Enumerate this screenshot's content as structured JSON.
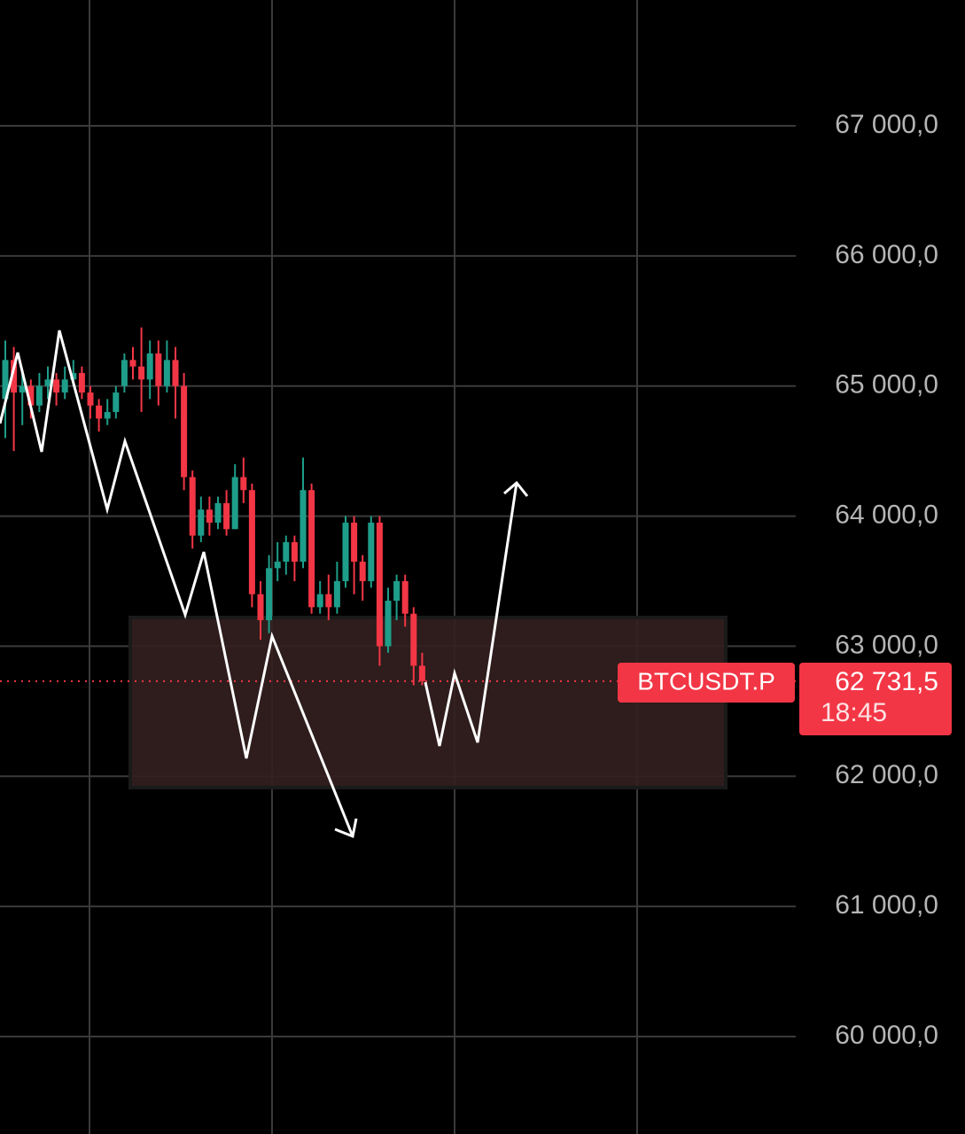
{
  "chart_data": {
    "type": "candlestick",
    "symbol": "BTCUSDT.P",
    "last_price": 62731.5,
    "last_price_label": "62 731,5",
    "countdown": "18:45",
    "ylim": [
      59251,
      67967
    ],
    "yticks": [
      {
        "value": 67000,
        "label": "67 000,0"
      },
      {
        "value": 66000,
        "label": "66 000,0"
      },
      {
        "value": 65000,
        "label": "65 000,0"
      },
      {
        "value": 64000,
        "label": "64 000,0"
      },
      {
        "value": 63000,
        "label": "63 000,0"
      },
      {
        "value": 62000,
        "label": "62 000,0"
      },
      {
        "value": 61000,
        "label": "61 000,0"
      },
      {
        "value": 60000,
        "label": "60 000,0"
      }
    ],
    "grid": true,
    "up_color": "#1e9e8a",
    "down_color": "#f23645",
    "open": [
      64900,
      65200,
      64950,
      65000,
      64850,
      65000,
      65050,
      64950,
      65050,
      65100,
      64950,
      64850,
      64750,
      64800,
      65000,
      65200,
      65150,
      65050,
      65250,
      65000,
      65200,
      65000,
      64300,
      63850,
      64050,
      63950,
      64100,
      63900,
      64300,
      64200,
      63400,
      63200,
      63600,
      63650,
      63800,
      63650,
      64200,
      63300,
      63400,
      63300,
      63500,
      63950,
      63650,
      63500,
      63950,
      63000,
      63350,
      63500,
      63250,
      62850
    ],
    "high": [
      65350,
      65300,
      65100,
      65050,
      65100,
      65150,
      65100,
      65150,
      65200,
      65150,
      65000,
      64900,
      64900,
      65000,
      65250,
      65300,
      65450,
      65350,
      65350,
      65350,
      65300,
      65100,
      64350,
      64150,
      64150,
      64150,
      64200,
      64400,
      64450,
      64250,
      63500,
      63700,
      63800,
      63850,
      63850,
      64450,
      64250,
      63500,
      63550,
      63650,
      64000,
      64000,
      63700,
      64000,
      64000,
      63450,
      63550,
      63550,
      63300,
      62950
    ],
    "low": [
      64600,
      64500,
      64700,
      64750,
      64800,
      64900,
      64850,
      64900,
      65000,
      64900,
      64750,
      64650,
      64700,
      64750,
      64950,
      65050,
      64800,
      64900,
      64850,
      64950,
      64750,
      64200,
      63750,
      63800,
      63850,
      63900,
      63850,
      63900,
      64100,
      63300,
      63050,
      63100,
      63500,
      63550,
      63500,
      63600,
      63250,
      63250,
      63200,
      63250,
      63450,
      63400,
      63350,
      63450,
      62850,
      62950,
      63200,
      63150,
      62700,
      62700
    ],
    "close": [
      65200,
      64950,
      65000,
      64850,
      65000,
      65050,
      64950,
      65050,
      65100,
      64950,
      64850,
      64750,
      64800,
      64950,
      65200,
      65150,
      65050,
      65250,
      65000,
      65200,
      65000,
      64300,
      63850,
      64050,
      63950,
      64100,
      63900,
      64300,
      64200,
      63400,
      63200,
      63600,
      63650,
      63800,
      63650,
      64200,
      63300,
      63400,
      63300,
      63500,
      63950,
      63650,
      63500,
      63950,
      63000,
      63350,
      63500,
      63250,
      62850,
      62731.5
    ]
  }
}
